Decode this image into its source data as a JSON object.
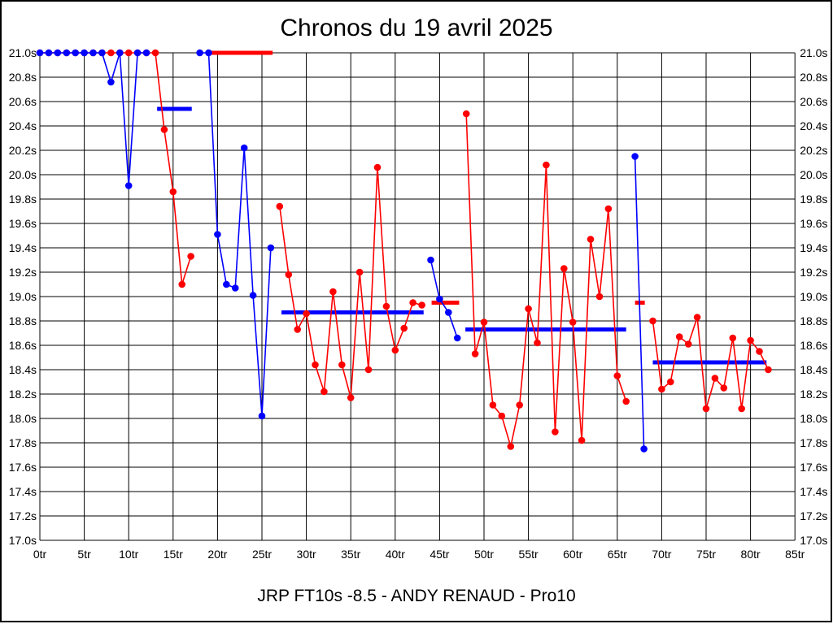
{
  "chart_data": {
    "type": "line",
    "title": "Chronos du 19 avril 2025",
    "caption": "JRP FT10s -8.5 - ANDY RENAUD - Pro10",
    "x_unit": "tr",
    "y_unit": "s",
    "xlim": [
      0,
      85
    ],
    "ylim": [
      17.0,
      21.0
    ],
    "x_tick_step": 5,
    "y_tick_step": 0.2,
    "grid": true,
    "y_labels_both_sides": true,
    "x_tick_labels": [
      "0tr",
      "5tr",
      "10tr",
      "15tr",
      "20tr",
      "25tr",
      "30tr",
      "35tr",
      "40tr",
      "45tr",
      "50tr",
      "55tr",
      "60tr",
      "65tr",
      "70tr",
      "75tr",
      "80tr",
      "85tr"
    ],
    "y_tick_labels": [
      "21.0s",
      "20.8s",
      "20.6s",
      "20.4s",
      "20.2s",
      "20.0s",
      "19.8s",
      "19.6s",
      "19.4s",
      "19.2s",
      "19.0s",
      "18.8s",
      "18.6s",
      "18.4s",
      "18.2s",
      "18.0s",
      "17.8s",
      "17.6s",
      "17.4s",
      "17.2s",
      "17.0s"
    ],
    "colors": {
      "red_series": "#ff0000",
      "blue_series": "#0000ff",
      "grid": "#000000",
      "frame": "#000000"
    },
    "series": [
      {
        "name": "red-driver",
        "color": "#ff0000",
        "segments": [
          [
            [
              0,
              21.0
            ],
            [
              1,
              21.0
            ],
            [
              2,
              21.0
            ],
            [
              3,
              21.0
            ],
            [
              4,
              21.0
            ],
            [
              5,
              21.0
            ],
            [
              6,
              21.0
            ],
            [
              7,
              21.0
            ],
            [
              8,
              21.0
            ],
            [
              9,
              21.0
            ],
            [
              10,
              21.0
            ],
            [
              11,
              21.0
            ],
            [
              12,
              21.0
            ],
            [
              13,
              21.0
            ],
            [
              14,
              20.37
            ],
            [
              15,
              19.86
            ],
            [
              16,
              19.1
            ],
            [
              17,
              19.33
            ]
          ],
          [
            [
              27,
              19.74
            ],
            [
              28,
              19.18
            ],
            [
              29,
              18.73
            ],
            [
              30,
              18.86
            ],
            [
              31,
              18.44
            ],
            [
              32,
              18.22
            ],
            [
              33,
              19.04
            ],
            [
              34,
              18.44
            ],
            [
              35,
              18.17
            ],
            [
              36,
              19.2
            ],
            [
              37,
              18.4
            ],
            [
              38,
              20.06
            ],
            [
              39,
              18.92
            ],
            [
              40,
              18.56
            ],
            [
              41,
              18.74
            ],
            [
              42,
              18.95
            ],
            [
              43,
              18.93
            ]
          ],
          [
            [
              48,
              20.5
            ],
            [
              49,
              18.53
            ],
            [
              50,
              18.79
            ],
            [
              51,
              18.11
            ],
            [
              52,
              18.02
            ],
            [
              53,
              17.77
            ],
            [
              54,
              18.11
            ],
            [
              55,
              18.9
            ],
            [
              56,
              18.62
            ],
            [
              57,
              20.08
            ],
            [
              58,
              17.89
            ],
            [
              59,
              19.23
            ],
            [
              60,
              18.79
            ],
            [
              61,
              17.82
            ],
            [
              62,
              19.47
            ],
            [
              63,
              19.0
            ],
            [
              64,
              19.72
            ],
            [
              65,
              18.35
            ],
            [
              66,
              18.14
            ]
          ],
          [
            [
              69,
              18.8
            ],
            [
              70,
              18.24
            ],
            [
              71,
              18.3
            ],
            [
              72,
              18.67
            ],
            [
              73,
              18.61
            ],
            [
              74,
              18.83
            ],
            [
              75,
              18.08
            ],
            [
              76,
              18.33
            ],
            [
              77,
              18.25
            ],
            [
              78,
              18.66
            ],
            [
              79,
              18.08
            ],
            [
              80,
              18.64
            ],
            [
              81,
              18.55
            ],
            [
              82,
              18.4
            ]
          ]
        ]
      },
      {
        "name": "blue-driver",
        "color": "#0000ff",
        "segments": [
          [
            [
              0,
              21.0
            ],
            [
              1,
              21.0
            ],
            [
              2,
              21.0
            ],
            [
              3,
              21.0
            ],
            [
              4,
              21.0
            ],
            [
              5,
              21.0
            ],
            [
              6,
              21.0
            ],
            [
              7,
              21.0
            ],
            [
              8,
              20.76
            ],
            [
              9,
              21.0
            ],
            [
              10,
              19.91
            ],
            [
              11,
              21.0
            ],
            [
              12,
              21.0
            ]
          ],
          [
            [
              18,
              21.0
            ],
            [
              19,
              21.0
            ],
            [
              20,
              19.51
            ],
            [
              21,
              19.1
            ],
            [
              22,
              19.07
            ],
            [
              23,
              20.22
            ],
            [
              24,
              19.01
            ],
            [
              25,
              18.02
            ],
            [
              26,
              19.4
            ]
          ],
          [
            [
              44,
              19.3
            ],
            [
              45,
              18.98
            ],
            [
              46,
              18.87
            ],
            [
              47,
              18.66
            ]
          ],
          [
            [
              67,
              20.15
            ],
            [
              68,
              17.75
            ]
          ]
        ]
      }
    ],
    "average_lines": [
      {
        "series": "blue-driver",
        "color": "#0000ff",
        "from": 13.2,
        "to": 17.1,
        "value": 20.54
      },
      {
        "series": "blue-driver",
        "color": "#0000ff",
        "from": 27.2,
        "to": 43.2,
        "value": 18.87
      },
      {
        "series": "blue-driver",
        "color": "#0000ff",
        "from": 47.9,
        "to": 66.0,
        "value": 18.73
      },
      {
        "series": "blue-driver",
        "color": "#0000ff",
        "from": 69.0,
        "to": 81.8,
        "value": 18.46
      },
      {
        "series": "red-driver",
        "color": "#ff0000",
        "from": 19.3,
        "to": 26.2,
        "value": 21.0
      },
      {
        "series": "red-driver",
        "color": "#ff0000",
        "from": 44.1,
        "to": 47.2,
        "value": 18.95
      },
      {
        "series": "red-driver",
        "color": "#ff0000",
        "from": 67.0,
        "to": 68.1,
        "value": 18.95
      }
    ]
  }
}
